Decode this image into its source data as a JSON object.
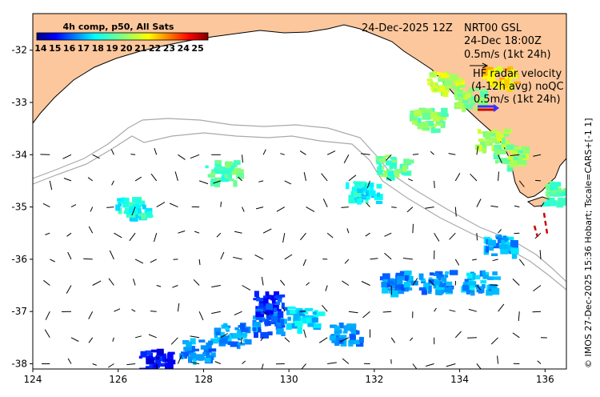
{
  "map": {
    "lon_range": [
      124,
      136.5
    ],
    "lat_range": [
      -38.1,
      -31.3
    ],
    "x_ticks": [
      "124",
      "126",
      "128",
      "130",
      "132",
      "134",
      "136"
    ],
    "y_ticks": [
      "-32",
      "-33",
      "-34",
      "-35",
      "-36",
      "-37",
      "-38"
    ],
    "x_tick_values": [
      124,
      126,
      128,
      130,
      132,
      134,
      136
    ],
    "y_tick_values": [
      -32,
      -33,
      -34,
      -35,
      -36,
      -37,
      -38
    ],
    "land_color": "#fcc79c",
    "ocean_color": "#ffffff",
    "shelf_contour_color": "#a9a9a9"
  },
  "colorbar": {
    "title": "4h comp, p50, All Sats",
    "labels": [
      "14",
      "15",
      "16",
      "17",
      "18",
      "19",
      "20",
      "21",
      "22",
      "23",
      "24",
      "25"
    ],
    "range": [
      14,
      25.5
    ],
    "colormap": "jet"
  },
  "annotations": {
    "date": "24-Dec-2025 12Z",
    "station": "NRT00 GSL",
    "station_time": "24-Dec 18:00Z",
    "scale_label": "0.5m/s (1kt 24h)",
    "hf_title": "HF radar velocity",
    "hf_subtitle": "(4-12h avg) noQC",
    "hf_scale_label": "0.5m/s (1kt 24h)"
  },
  "credit": "© IMOS 27-Dec-2025 15:36 Hobart; Tscale=CARS+[-1 1]",
  "sst_patches": [
    {
      "lon": 133.6,
      "lat": -32.6,
      "sst": 20.5
    },
    {
      "lon": 134.2,
      "lat": -32.9,
      "sst": 20.0
    },
    {
      "lon": 133.2,
      "lat": -33.3,
      "sst": 19.8
    },
    {
      "lon": 134.7,
      "lat": -33.7,
      "sst": 20.2
    },
    {
      "lon": 135.1,
      "lat": -34.0,
      "sst": 19.9
    },
    {
      "lon": 134.9,
      "lat": -32.5,
      "sst": 21.5
    },
    {
      "lon": 136.3,
      "lat": -34.7,
      "sst": 19.5
    },
    {
      "lon": 128.6,
      "lat": -37.4,
      "sst": 17.2
    },
    {
      "lon": 129.5,
      "lat": -37.2,
      "sst": 16.8
    },
    {
      "lon": 127.8,
      "lat": -37.7,
      "sst": 17.0
    },
    {
      "lon": 126.8,
      "lat": -37.9,
      "sst": 15.5
    },
    {
      "lon": 130.3,
      "lat": -37.1,
      "sst": 17.8
    },
    {
      "lon": 131.3,
      "lat": -37.4,
      "sst": 16.9
    },
    {
      "lon": 132.5,
      "lat": -36.4,
      "sst": 17.0
    },
    {
      "lon": 133.4,
      "lat": -36.4,
      "sst": 17.1
    },
    {
      "lon": 134.4,
      "lat": -36.4,
      "sst": 17.5
    },
    {
      "lon": 134.9,
      "lat": -35.7,
      "sst": 17.3
    },
    {
      "lon": 128.4,
      "lat": -34.3,
      "sst": 19.2
    },
    {
      "lon": 132.4,
      "lat": -34.2,
      "sst": 19.4
    },
    {
      "lon": 126.3,
      "lat": -35.0,
      "sst": 18.5
    },
    {
      "lon": 131.7,
      "lat": -34.7,
      "sst": 18.3
    },
    {
      "lon": 129.5,
      "lat": -36.8,
      "sst": 16.0
    }
  ]
}
